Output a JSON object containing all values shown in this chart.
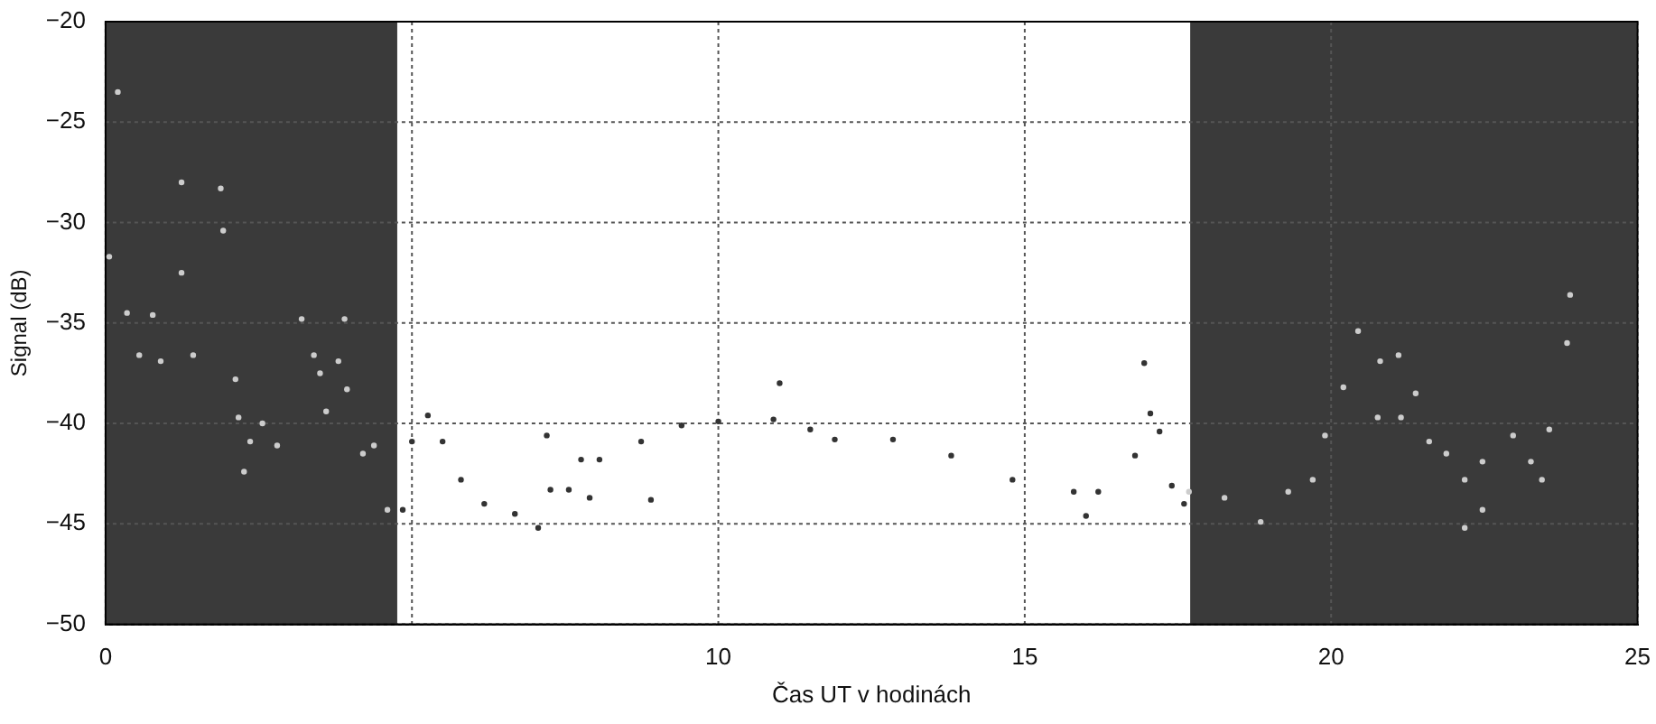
{
  "chart_data": {
    "type": "scatter",
    "xlabel": "Čas UT v hodinách",
    "ylabel": "Signal (dB)",
    "xlim": [
      0,
      25
    ],
    "ylim": [
      -50,
      -20
    ],
    "xticks": [
      0,
      {
        "value": 5,
        "label": null
      },
      10,
      15,
      20,
      25
    ],
    "yticks": [
      -50,
      -45,
      -40,
      -35,
      -30,
      -25,
      -20
    ],
    "grid": true,
    "marker": "circle",
    "bands": [
      {
        "axis": "x",
        "from": 0,
        "to": 4.76,
        "color": "#3a3a3a"
      },
      {
        "axis": "x",
        "from": 17.7,
        "to": 25,
        "color": "#3a3a3a"
      }
    ],
    "series": [
      {
        "color": "#333333",
        "x": [
          4.85,
          5.0,
          5.26,
          5.5,
          5.8,
          6.18,
          6.68,
          7.06,
          7.26,
          7.56,
          7.76,
          7.9,
          8.06,
          8.74,
          9.4,
          10,
          10.9,
          11.5,
          11.9,
          12.85,
          13.8,
          14.8,
          15.8,
          16.0,
          16.2,
          16.8,
          17.05,
          17.2,
          17.4,
          17.6,
          11.0,
          16.95,
          8.9,
          7.2
        ],
        "values": [
          -44.3,
          -40.9,
          -39.6,
          -40.9,
          -42.8,
          -44,
          -44.5,
          -45.2,
          -43.3,
          -43.3,
          -41.8,
          -43.7,
          -41.8,
          -40.9,
          -40.1,
          -39.9,
          -39.8,
          -40.3,
          -40.8,
          -40.8,
          -41.6,
          -42.8,
          -43.4,
          -44.6,
          -43.4,
          -41.6,
          -39.5,
          -40.4,
          -43.1,
          -44,
          -38,
          -37,
          -43.8,
          -40.6
        ]
      },
      {
        "color": "#cccccc",
        "x": [
          0.2,
          0.06,
          0.35,
          0.55,
          0.77,
          0.9,
          1.24,
          1.43,
          1.92,
          2.12,
          2.17,
          2.36,
          2.56,
          2.8,
          3.2,
          3.4,
          3.5,
          3.6,
          3.8,
          3.9,
          3.94,
          4.2,
          4.38,
          4.6,
          1.88,
          1.24,
          2.26,
          17.68,
          18.26,
          18.85,
          19.3,
          19.7,
          19.9,
          20.2,
          20.44,
          20.8,
          20.76,
          21.1,
          21.14,
          21.38,
          21.6,
          21.88,
          22.18,
          22.47,
          22.47,
          22.18,
          22.97,
          23.26,
          23.44,
          23.56,
          23.85,
          23.9
        ],
        "values": [
          -23.5,
          -31.7,
          -34.5,
          -36.6,
          -34.6,
          -36.9,
          -32.5,
          -36.6,
          -30.4,
          -37.8,
          -39.7,
          -40.9,
          -40,
          -41.1,
          -34.8,
          -36.6,
          -37.5,
          -39.4,
          -36.9,
          -34.8,
          -38.3,
          -41.5,
          -41.1,
          -44.3,
          -28.3,
          -28,
          -42.4,
          -43.4,
          -43.7,
          -44.9,
          -43.4,
          -42.8,
          -40.6,
          -38.2,
          -35.4,
          -36.9,
          -39.7,
          -36.6,
          -39.7,
          -38.5,
          -40.9,
          -41.5,
          -42.8,
          -41.9,
          -44.3,
          -45.2,
          -40.6,
          -41.9,
          -42.8,
          -40.3,
          -36,
          -33.6
        ]
      }
    ]
  }
}
